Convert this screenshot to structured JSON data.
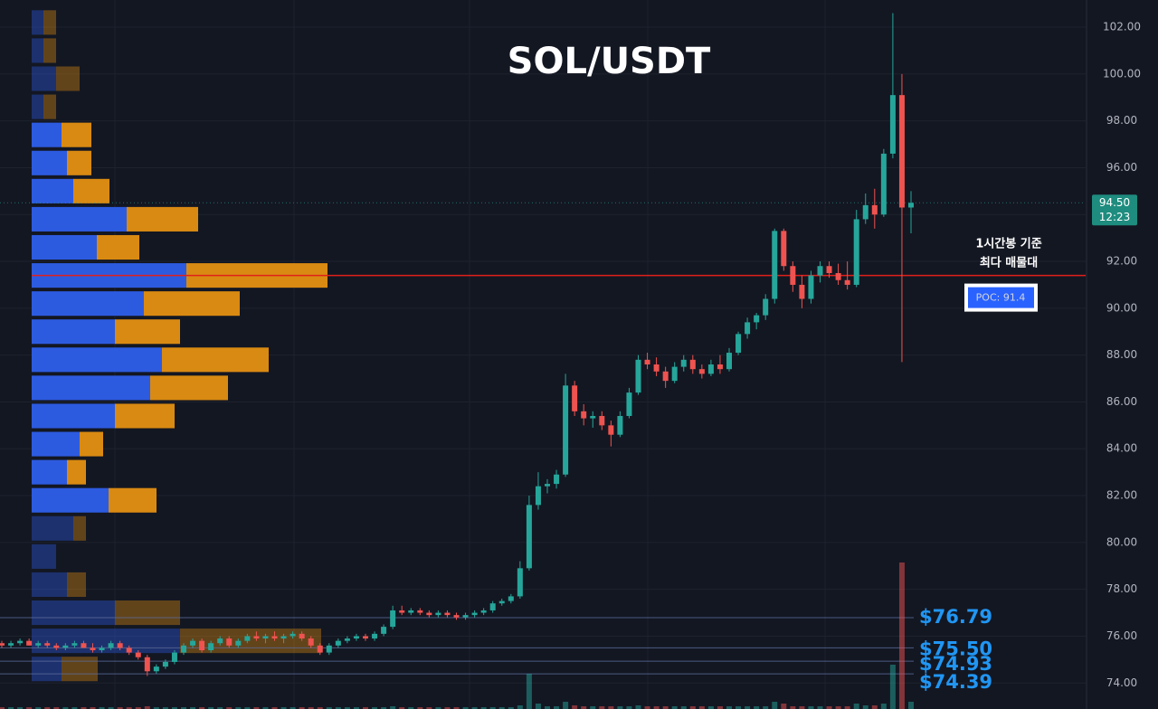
{
  "chart_data": {
    "type": "candlestick",
    "title": "SOL/USDT",
    "ylim": [
      72.89,
      103.16
    ],
    "yticks": [
      {
        "value": 74,
        "label": "74.00"
      },
      {
        "value": 76,
        "label": "76.00"
      },
      {
        "value": 78,
        "label": "78.00"
      },
      {
        "value": 80,
        "label": "80.00"
      },
      {
        "value": 82,
        "label": "82.00"
      },
      {
        "value": 84,
        "label": "84.00"
      },
      {
        "value": 86,
        "label": "86.00"
      },
      {
        "value": 88,
        "label": "88.00"
      },
      {
        "value": 90,
        "label": "90.00"
      },
      {
        "value": 92,
        "label": "92.00"
      },
      {
        "value": 94,
        "label": "94.00"
      },
      {
        "value": 96,
        "label": "96.00"
      },
      {
        "value": 98,
        "label": "98.00"
      },
      {
        "value": 100,
        "label": "100.00"
      },
      {
        "value": 102,
        "label": "102.00"
      }
    ],
    "grid": true,
    "up_color": "#26a69a",
    "down_color": "#ef5350",
    "open": [
      75.7,
      75.6,
      75.7,
      75.8,
      75.6,
      75.7,
      75.6,
      75.5,
      75.6,
      75.7,
      75.5,
      75.4,
      75.5,
      75.7,
      75.5,
      75.3,
      75.1,
      74.5,
      74.7,
      74.9,
      75.3,
      75.6,
      75.8,
      75.4,
      75.7,
      75.9,
      75.6,
      75.8,
      76.0,
      75.9,
      76.0,
      75.9,
      76.0,
      76.1,
      75.9,
      75.6,
      75.3,
      75.6,
      75.8,
      75.9,
      76.0,
      75.9,
      76.1,
      76.4,
      77.1,
      77.0,
      77.1,
      77.0,
      76.9,
      77.0,
      76.9,
      76.8,
      76.9,
      77.0,
      77.1,
      77.4,
      77.5,
      77.7,
      78.9,
      81.6,
      82.4,
      82.5,
      82.9,
      86.7,
      85.6,
      85.3,
      85.4,
      85.0,
      84.6,
      85.4,
      86.4,
      87.8,
      87.6,
      87.3,
      86.9,
      87.5,
      87.8,
      87.4,
      87.2,
      87.6,
      87.4,
      88.1,
      88.9,
      89.4,
      89.7,
      90.4,
      93.3,
      91.8,
      91.0,
      90.4,
      91.4,
      91.8,
      91.5,
      91.2,
      91.0,
      93.8,
      94.4,
      94.0,
      96.6,
      99.1,
      94.3
    ],
    "high": [
      75.8,
      75.8,
      75.9,
      75.9,
      75.8,
      75.8,
      75.7,
      75.7,
      75.8,
      75.8,
      75.7,
      75.6,
      75.8,
      75.8,
      75.6,
      75.4,
      75.2,
      74.8,
      75.0,
      75.4,
      75.7,
      75.9,
      75.9,
      75.8,
      76.0,
      76.0,
      75.9,
      76.1,
      76.2,
      76.1,
      76.2,
      76.1,
      76.2,
      76.2,
      76.0,
      75.7,
      75.7,
      75.9,
      76.0,
      76.1,
      76.1,
      76.2,
      76.5,
      77.3,
      77.3,
      77.2,
      77.2,
      77.1,
      77.1,
      77.1,
      77.0,
      77.0,
      77.1,
      77.2,
      77.5,
      77.6,
      77.8,
      79.2,
      82.0,
      83.0,
      82.7,
      83.1,
      87.2,
      86.9,
      85.9,
      85.6,
      85.6,
      85.2,
      85.6,
      86.6,
      88.0,
      88.1,
      87.9,
      87.5,
      87.7,
      88.0,
      88.0,
      87.6,
      87.8,
      88.0,
      88.3,
      89.0,
      89.6,
      89.8,
      90.6,
      93.4,
      93.4,
      92.0,
      91.4,
      91.6,
      92.0,
      92.0,
      91.9,
      92.0,
      94.2,
      94.9,
      95.1,
      96.8,
      102.6,
      100.0,
      95.0
    ],
    "low": [
      75.5,
      75.5,
      75.6,
      75.6,
      75.5,
      75.5,
      75.4,
      75.4,
      75.5,
      75.5,
      75.3,
      75.3,
      75.4,
      75.4,
      75.2,
      75.0,
      74.3,
      74.4,
      74.6,
      74.8,
      75.2,
      75.5,
      75.3,
      75.3,
      75.6,
      75.5,
      75.5,
      75.7,
      75.8,
      75.7,
      75.8,
      75.7,
      75.9,
      75.8,
      75.5,
      75.2,
      75.2,
      75.5,
      75.7,
      75.8,
      75.8,
      75.8,
      76.0,
      76.3,
      76.9,
      76.9,
      76.9,
      76.8,
      76.8,
      76.8,
      76.7,
      76.7,
      76.8,
      76.9,
      77.0,
      77.3,
      77.4,
      77.6,
      78.8,
      81.4,
      82.1,
      82.3,
      82.8,
      85.4,
      85.0,
      84.9,
      84.8,
      84.1,
      84.5,
      85.3,
      86.3,
      87.4,
      87.1,
      86.6,
      86.8,
      87.3,
      87.2,
      87.0,
      87.1,
      87.2,
      87.3,
      88.0,
      88.7,
      89.1,
      89.5,
      90.2,
      91.6,
      90.7,
      90.0,
      90.2,
      91.1,
      91.3,
      91.0,
      90.8,
      90.9,
      93.6,
      93.4,
      93.9,
      96.4,
      87.7,
      93.2
    ],
    "close": [
      75.6,
      75.7,
      75.8,
      75.6,
      75.7,
      75.6,
      75.5,
      75.6,
      75.7,
      75.5,
      75.4,
      75.5,
      75.7,
      75.5,
      75.3,
      75.1,
      74.5,
      74.7,
      74.9,
      75.3,
      75.6,
      75.8,
      75.4,
      75.7,
      75.9,
      75.6,
      75.8,
      76.0,
      75.9,
      76.0,
      75.9,
      76.0,
      76.1,
      75.9,
      75.6,
      75.3,
      75.6,
      75.8,
      75.9,
      76.0,
      75.9,
      76.1,
      76.4,
      77.1,
      77.0,
      77.1,
      77.0,
      76.9,
      77.0,
      76.9,
      76.8,
      76.9,
      77.0,
      77.1,
      77.4,
      77.5,
      77.7,
      78.9,
      81.6,
      82.4,
      82.5,
      82.9,
      86.7,
      85.6,
      85.3,
      85.4,
      85.0,
      84.6,
      85.4,
      86.4,
      87.8,
      87.6,
      87.3,
      86.9,
      87.5,
      87.8,
      87.4,
      87.2,
      87.6,
      87.4,
      88.1,
      88.9,
      89.4,
      89.7,
      90.4,
      93.3,
      91.8,
      91.0,
      90.4,
      91.4,
      91.8,
      91.5,
      91.2,
      91.0,
      93.8,
      94.4,
      94.0,
      96.6,
      99.1,
      94.3,
      94.5
    ],
    "volume": [
      2,
      2,
      2,
      2,
      2,
      2,
      2,
      2,
      2,
      2,
      2,
      2,
      2,
      2,
      2,
      2,
      3,
      2,
      2,
      2,
      2,
      2,
      2,
      2,
      2,
      2,
      2,
      2,
      2,
      2,
      2,
      2,
      2,
      2,
      2,
      2,
      2,
      2,
      2,
      2,
      2,
      2,
      2,
      3,
      2,
      2,
      2,
      2,
      2,
      2,
      2,
      2,
      2,
      2,
      2,
      2,
      2,
      4,
      39,
      6,
      3,
      3,
      8,
      4,
      3,
      3,
      3,
      3,
      3,
      3,
      4,
      3,
      3,
      3,
      3,
      3,
      3,
      3,
      3,
      3,
      3,
      3,
      3,
      3,
      3,
      8,
      6,
      3,
      3,
      3,
      3,
      3,
      3,
      3,
      6,
      4,
      4,
      6,
      49,
      162,
      8
    ],
    "profile": {
      "levels": [
        102.2,
        101.0,
        99.8,
        98.6,
        97.4,
        96.2,
        95.0,
        93.8,
        92.6,
        91.4,
        90.2,
        89.0,
        87.8,
        86.6,
        85.4,
        84.2,
        83.0,
        81.8,
        80.6,
        79.4,
        78.2,
        77.0,
        75.8,
        74.6
      ],
      "buy": [
        13,
        13,
        27,
        13,
        33,
        39,
        46,
        105,
        72,
        171,
        124,
        92,
        144,
        131,
        92,
        53,
        39,
        85,
        46,
        27,
        39,
        92,
        164,
        33
      ],
      "sell": [
        14,
        14,
        26,
        14,
        33,
        27,
        40,
        79,
        47,
        156,
        106,
        72,
        118,
        86,
        66,
        26,
        21,
        53,
        14,
        0,
        21,
        72,
        156,
        40
      ],
      "value_area": [
        81.8,
        97.4
      ],
      "buy_color": "#2d5be0",
      "sell_color": "#d98a12"
    },
    "poc": {
      "value": 91.4,
      "label": "POC: 91.4"
    },
    "annotation": [
      "1시간봉 기준",
      "최다 매물대"
    ],
    "last_price": {
      "value": 94.5,
      "label": "94.50"
    },
    "countdown": "12:23",
    "levels": {
      "values": [
        76.79,
        75.5,
        74.93,
        74.39
      ],
      "value_labels": [
        "$76.79",
        "$75.50",
        "$74.93",
        "$74.39"
      ],
      "color": "#2196f3"
    }
  }
}
